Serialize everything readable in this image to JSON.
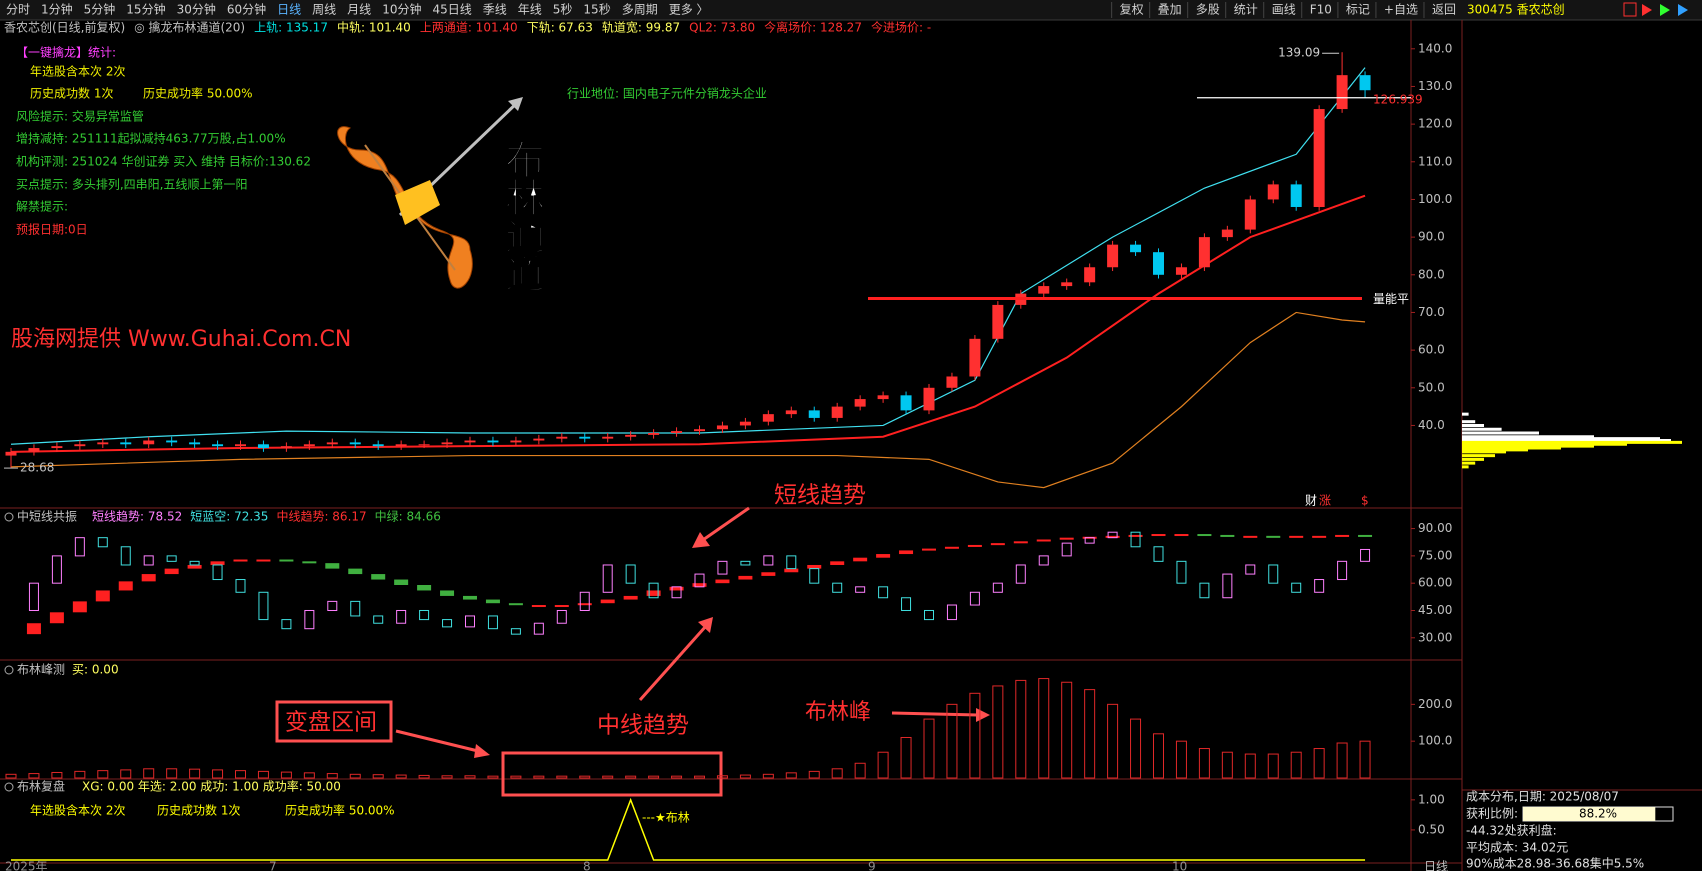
{
  "toolbar": {
    "periods": [
      "分时",
      "1分钟",
      "5分钟",
      "15分钟",
      "30分钟",
      "60分钟",
      "日线",
      "周线",
      "月线",
      "10分钟",
      "45日线",
      "季线",
      "年线",
      "5秒",
      "15秒",
      "多周期",
      "更多 〉"
    ],
    "tools": [
      "复权",
      "叠加",
      "多股",
      "统计",
      "画线",
      "F10",
      "标记",
      "+自选",
      "返回"
    ],
    "stock": "300475 香农芯创"
  },
  "info": [
    {
      "text": "香农芯创(日线,前复权)",
      "color": "#c0c0c0"
    },
    {
      "text": "◎ 擒龙布林通道(20)",
      "color": "#c0c0c0"
    },
    {
      "text": "上轨: 135.17",
      "color": "#00e0e0"
    },
    {
      "text": "中轨: 101.40",
      "color": "#ffff60"
    },
    {
      "text": "上两通道: 101.40",
      "color": "#ff3030"
    },
    {
      "text": "下轨: 67.63",
      "color": "#ffff60"
    },
    {
      "text": "轨道宽: 99.87",
      "color": "#ffff60"
    },
    {
      "text": "QL2: 73.80",
      "color": "#ff3030"
    },
    {
      "text": "今离场价: 128.27",
      "color": "#ff3030"
    },
    {
      "text": "今进场价: -",
      "color": "#ff3030"
    }
  ],
  "notes": [
    {
      "text": "【一键擒龙】统计:",
      "color": "#ff40ff"
    },
    {
      "text": "年选股含本次 2次",
      "color": "#f0f000"
    },
    {
      "text": "历史成功数 1次",
      "color": "#f0f000"
    },
    {
      "text": "历史成功率 50.00%",
      "color": "#f0f000"
    },
    {
      "text": "风险提示: 交易异常监管",
      "color": "#33cc33"
    },
    {
      "text": "增持减持: 251111起拟减持463.77万股,占1.00%",
      "color": "#33cc33"
    },
    {
      "text": "机构评测: 251024 华创证券 买入 维持 目标价:130.62",
      "color": "#33cc33"
    },
    {
      "text": "买点提示: 多头排列,四串阳,五线顺上第一阳",
      "color": "#33cc33"
    },
    {
      "text": "解禁提示:",
      "color": "#33cc33"
    },
    {
      "text": "预报日期:0日",
      "color": "#ff3030"
    }
  ],
  "industry": "行业地位: 国内电子元件分销龙头企业",
  "watermark": "股海网提供 Www.Guhai.Com.CN",
  "logo_text": "布林通道",
  "markers": [
    "财",
    "涨",
    "$"
  ],
  "main": {
    "ylim": [
      21.8,
      142.6
    ],
    "yticks": [
      {
        "value": 140,
        "label": "140.0"
      },
      {
        "value": 130,
        "label": "130.0"
      },
      {
        "value": 120,
        "label": "120.0"
      },
      {
        "value": 110,
        "label": "110.0"
      },
      {
        "value": 100,
        "label": "100.0"
      },
      {
        "value": 90,
        "label": "90.0"
      },
      {
        "value": 80,
        "label": "80.0"
      },
      {
        "value": 70,
        "label": "70.0"
      },
      {
        "value": 60,
        "label": "60.0"
      },
      {
        "value": 50,
        "label": "50.0"
      },
      {
        "value": 40,
        "label": "40.0"
      }
    ],
    "up_color": "#ff3030",
    "down_color": "#00c8f0",
    "candles": {
      "open": [
        32,
        33,
        34,
        34.5,
        35,
        35.5,
        35,
        36,
        35.5,
        35,
        34.5,
        35,
        34,
        34.5,
        35,
        35.5,
        35,
        34.5,
        35,
        35,
        35.5,
        36,
        35.5,
        36,
        36.5,
        37,
        36.5,
        37,
        37.5,
        38,
        38.5,
        39,
        40,
        41,
        43,
        44,
        42,
        45,
        47,
        48,
        44,
        50,
        53,
        63,
        72,
        75,
        77,
        78,
        82,
        88,
        86,
        80,
        82,
        90,
        92,
        100,
        104,
        98,
        124,
        133
      ],
      "high": [
        34,
        35,
        35.5,
        36,
        36.5,
        36.5,
        37,
        37,
        36.5,
        36,
        36,
        36,
        35.5,
        36,
        36.5,
        36.5,
        36,
        36,
        36,
        36.5,
        37,
        37,
        37,
        37.5,
        38,
        38,
        38,
        38.5,
        39,
        39.5,
        40,
        41,
        42,
        44,
        45,
        45,
        46,
        48,
        49,
        49,
        51,
        54,
        64,
        73,
        76,
        78,
        79,
        83,
        89,
        89,
        87,
        83,
        91,
        93,
        101,
        105,
        105,
        125,
        139.09,
        134
      ],
      "low": [
        28.68,
        32,
        33,
        33.5,
        34,
        34,
        34,
        34.5,
        34,
        33.5,
        33.5,
        33,
        33,
        33.5,
        34,
        34,
        33.5,
        33.5,
        34,
        34,
        34.5,
        34.5,
        34.5,
        35,
        35.5,
        35.5,
        35.5,
        36,
        36.5,
        37,
        37.5,
        38,
        39,
        40,
        42,
        41,
        41,
        44,
        46,
        43,
        43,
        49,
        52,
        62,
        71,
        74,
        76,
        77,
        81,
        85,
        79,
        79,
        81,
        89,
        91,
        99,
        97,
        97,
        123,
        126.939
      ],
      "close": [
        33,
        34,
        34.5,
        35,
        35.5,
        35,
        36,
        35.5,
        35,
        34.5,
        35,
        34,
        34.5,
        35,
        35.5,
        35,
        34.5,
        35,
        35,
        35.5,
        36,
        35.5,
        36,
        36.5,
        37,
        36.5,
        37,
        37.5,
        38,
        38.5,
        39,
        40,
        41,
        43,
        44,
        42,
        45,
        47,
        48,
        44,
        50,
        53,
        63,
        72,
        75,
        77,
        78,
        82,
        88,
        86,
        80,
        82,
        90,
        92,
        100,
        104,
        98,
        124,
        133,
        129
      ]
    },
    "bands": [
      {
        "color": "#40e0f0",
        "x": [
          0,
          6,
          12,
          20,
          30,
          38,
          42,
          44,
          48,
          52,
          56,
          59
        ],
        "values": [
          35,
          37,
          38.5,
          38,
          38,
          40,
          52,
          75,
          90,
          103,
          112,
          135
        ]
      },
      {
        "color": "#ff2020",
        "x": [
          0,
          10,
          20,
          30,
          38,
          42,
          46,
          50,
          54,
          59
        ],
        "values": [
          33,
          34,
          34.5,
          35,
          37,
          45,
          58,
          75,
          90,
          101
        ]
      },
      {
        "color": "#e08020",
        "x": [
          0,
          10,
          20,
          30,
          36,
          40,
          43,
          45,
          48,
          51,
          54,
          56,
          58,
          59
        ],
        "values": [
          29,
          31,
          32,
          32,
          32,
          31,
          25,
          23.5,
          30,
          45,
          62,
          70,
          68,
          67.5
        ]
      }
    ],
    "levels": [
      {
        "value": 127,
        "color": "#ffffff"
      },
      {
        "value": 73.7,
        "color": "#ff2020",
        "label": "量能平"
      }
    ]
  },
  "panel1": {
    "title": "中短线共振",
    "legend": [
      {
        "text": "短线趋势: 78.52",
        "color": "#ff80ff"
      },
      {
        "text": "短蓝空: 72.35",
        "color": "#40e0e0"
      },
      {
        "text": "中线趋势: 86.17",
        "color": "#ff3030"
      },
      {
        "text": "中绿: 84.66",
        "color": "#40c040"
      }
    ],
    "ylim": [
      17.8,
      101.3
    ],
    "yticks": [
      {
        "value": 90,
        "label": "90.00"
      },
      {
        "value": 75,
        "label": "75.00"
      },
      {
        "value": 60,
        "label": "60.00"
      },
      {
        "value": 45,
        "label": "45.00"
      },
      {
        "value": 30,
        "label": "30.00"
      }
    ],
    "short": {
      "up_color": "#ff80ff",
      "down_color": "#40e0e0",
      "values": [
        45,
        60,
        75,
        85,
        80,
        70,
        75,
        72,
        70,
        62,
        55,
        40,
        35,
        45,
        50,
        42,
        38,
        45,
        40,
        36,
        42,
        35,
        32,
        38,
        45,
        55,
        70,
        60,
        52,
        58,
        65,
        72,
        70,
        75,
        68,
        60,
        55,
        58,
        52,
        45,
        40,
        48,
        55,
        60,
        70,
        75,
        82,
        85,
        88,
        80,
        72,
        60,
        52,
        65,
        70,
        60,
        55,
        62,
        72,
        78.52
      ]
    },
    "mid": {
      "up_color": "#ff2020",
      "down_color": "#40b040",
      "values": [
        32,
        38,
        44,
        50,
        56,
        61,
        65,
        68,
        70,
        72,
        73,
        73,
        72,
        71,
        68,
        65,
        62,
        59,
        56,
        53,
        51,
        49,
        48,
        48,
        48,
        49,
        51,
        53,
        56,
        58,
        60,
        62,
        64,
        66,
        68,
        70,
        72,
        74,
        76,
        78,
        79,
        80,
        81,
        82,
        83,
        84,
        85,
        85.5,
        86,
        86.5,
        87,
        87,
        86.5,
        86,
        86,
        85.5,
        86,
        86,
        86.5,
        86.17
      ]
    }
  },
  "panel2": {
    "title": "布林峰测",
    "legend": "买: 0.00",
    "ylim": [
      0,
      315
    ],
    "yticks": [
      {
        "value": 200,
        "label": "200.0"
      },
      {
        "value": 100,
        "label": "100.0"
      }
    ],
    "color": "#e02828",
    "values": [
      10,
      12,
      15,
      18,
      20,
      22,
      25,
      25,
      24,
      22,
      20,
      18,
      16,
      14,
      12,
      10,
      9,
      8,
      7,
      6,
      6,
      5,
      5,
      5,
      5,
      5,
      5,
      5,
      5,
      5,
      5,
      6,
      8,
      10,
      14,
      18,
      25,
      40,
      70,
      110,
      160,
      200,
      230,
      250,
      265,
      270,
      260,
      240,
      200,
      160,
      120,
      100,
      80,
      70,
      65,
      65,
      70,
      80,
      95,
      100
    ]
  },
  "panel3": {
    "title": "布林复盘",
    "legend": "XG: 0.00 年选: 2.00 成功: 1.00 成功率: 50.00",
    "stats": [
      "年选股含本次 2次",
      "历史成功数 1次",
      "历史成功率 50.00%"
    ],
    "ylim": [
      -0.05,
      1.33
    ],
    "yticks": [
      {
        "value": 1,
        "label": "1.00"
      },
      {
        "value": 0.5,
        "label": "0.50"
      }
    ],
    "color": "#ffff00",
    "x": [
      0,
      26,
      27,
      28,
      59
    ],
    "values": [
      0,
      0,
      1,
      0,
      0
    ],
    "note": "---★布林"
  },
  "annotations": [
    "短线趋势",
    "中线趋势",
    "布林峰",
    "变盘区间"
  ],
  "dates": [
    "2025年",
    "7",
    "8",
    "9",
    "10"
  ],
  "period": "日线",
  "chips": [
    {
      "color": "#ffffff",
      "prices": [
        43,
        41,
        40,
        39,
        38,
        37,
        36.5,
        36
      ],
      "amounts": [
        3,
        6,
        10,
        18,
        35,
        60,
        90,
        95
      ]
    },
    {
      "color": "#ffff00",
      "prices": [
        35.5,
        35,
        34.5,
        34,
        33.5,
        33,
        32,
        31,
        30,
        29
      ],
      "amounts": [
        100,
        75,
        60,
        45,
        30,
        20,
        15,
        10,
        6,
        3
      ]
    }
  ],
  "cost": {
    "title": "成本分布,日期: 2025/08/07",
    "profit": {
      "label": "获利比例:",
      "value": 88.2,
      "value_label": "88.2%"
    },
    "lines": [
      "-44.32处获利盘:",
      "平均成本: 34.02元",
      "90%成本28.98-36.68集中5.5%"
    ]
  }
}
